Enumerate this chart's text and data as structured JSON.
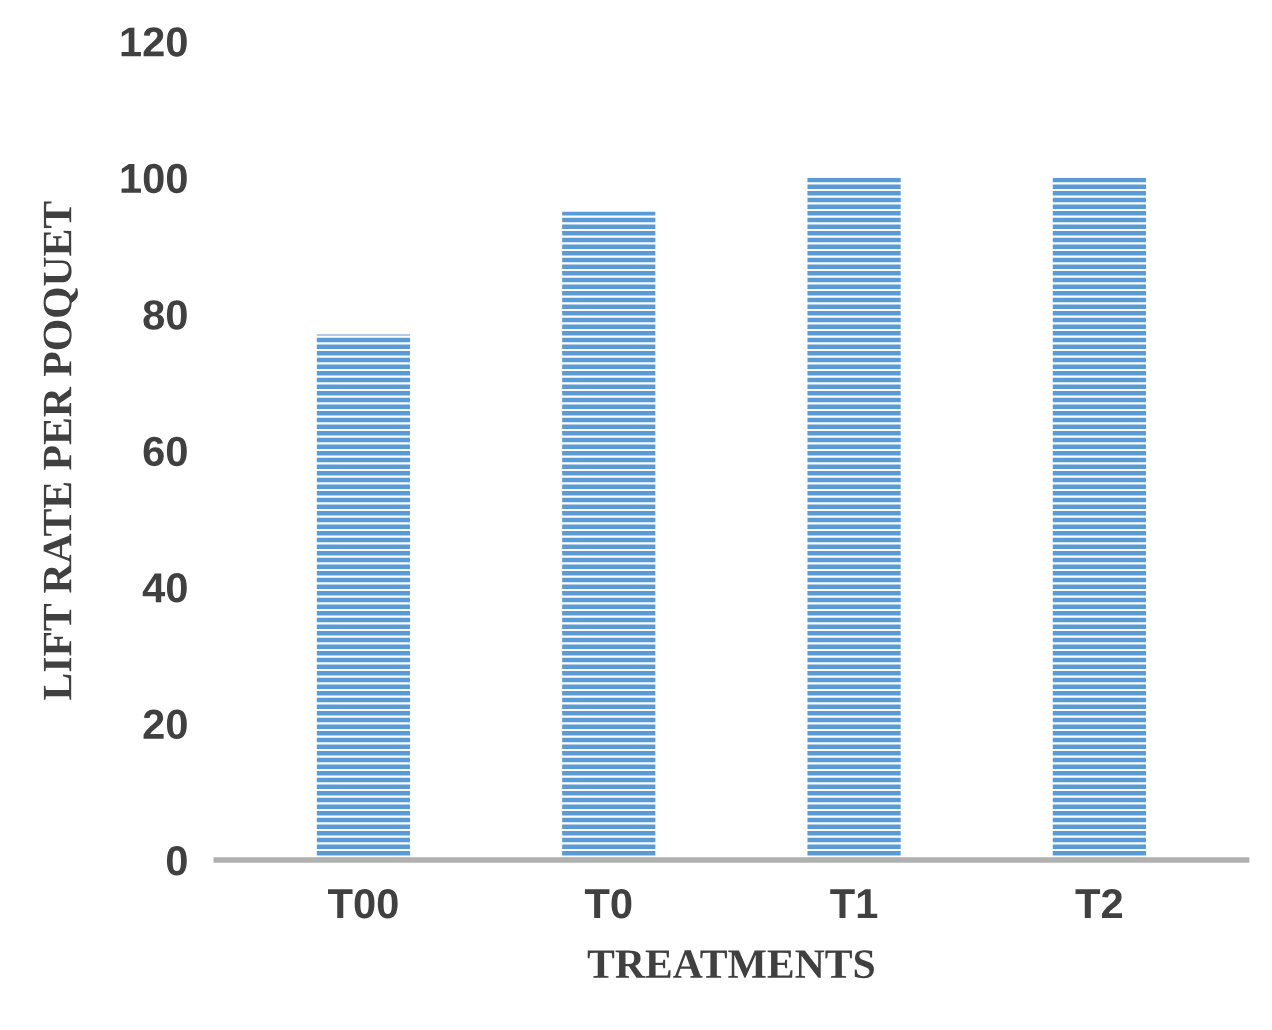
{
  "chart_data": {
    "type": "bar",
    "xlabel": "TREATMENTS",
    "ylabel": "LIFT RATE PER POQUET",
    "categories": [
      "T00",
      "T0",
      "T1",
      "T2"
    ],
    "values": [
      77,
      95,
      100,
      100
    ],
    "color": "#5b9bd5",
    "ylim": [
      0,
      120
    ],
    "yticks": [
      0,
      20,
      40,
      60,
      80,
      100,
      120
    ],
    "grid": false,
    "legend": false
  }
}
